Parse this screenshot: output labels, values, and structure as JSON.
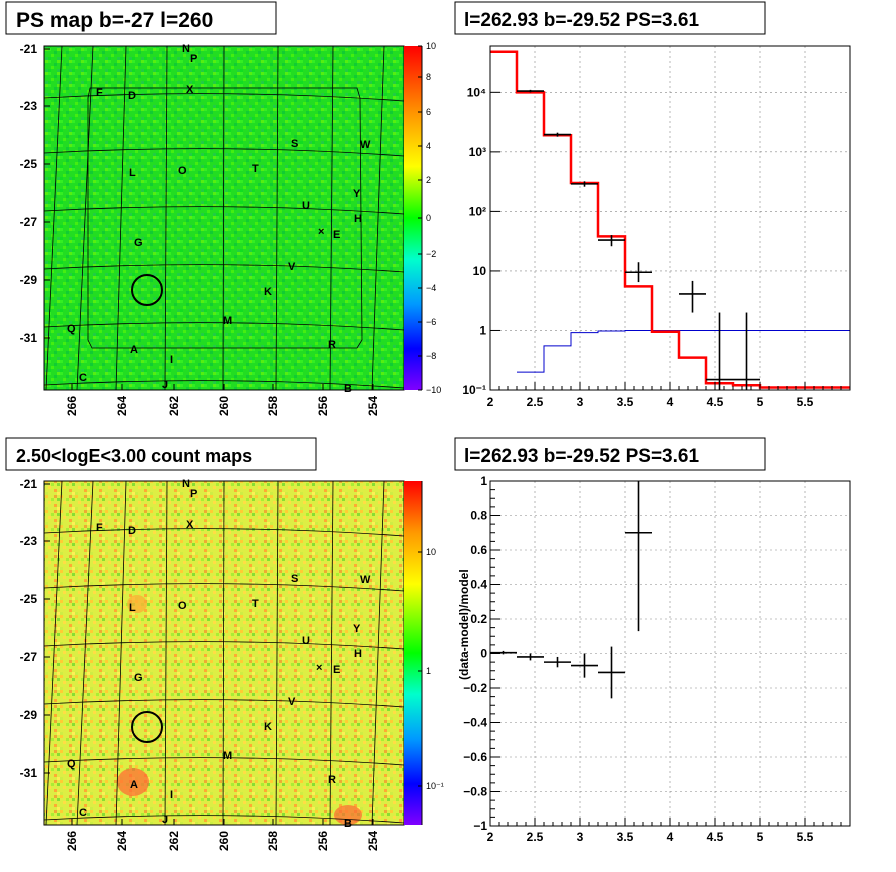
{
  "panels": {
    "tl_title": "PS map b=-27 l=260",
    "tr_title": "l=262.93 b=-29.52 PS=3.61",
    "bl_title": "2.50<logE<3.00 count maps",
    "br_title": "l=262.93 b=-29.52 PS=3.61"
  },
  "maps": {
    "y_ticks": [
      "-21",
      "-23",
      "-25",
      "-27",
      "-29",
      "-31"
    ],
    "x_ticks": [
      "266",
      "264",
      "262",
      "260",
      "258",
      "256",
      "254"
    ],
    "source_labels": [
      "N",
      "P",
      "F",
      "D",
      "X",
      "S",
      "W",
      "L",
      "O",
      "T",
      "Y",
      "U",
      "H",
      "E",
      "G",
      "V",
      "K",
      "M",
      "Q",
      "R",
      "A",
      "I",
      "C",
      "J",
      "B"
    ],
    "ps_colorbar_ticks": [
      "10",
      "8",
      "6",
      "4",
      "2",
      "0",
      "−2",
      "−4",
      "−6",
      "−8",
      "−10"
    ],
    "count_colorbar_ticks": [
      "10",
      "1",
      "10⁻¹"
    ]
  },
  "chart_data": [
    {
      "type": "line",
      "panel": "spectrum",
      "title": "l=262.93 b=-29.52 PS=3.61",
      "x_scale": "linear",
      "y_scale": "log",
      "xlim": [
        2,
        6
      ],
      "ylim": [
        0.1,
        60000
      ],
      "x_ticks": [
        "2",
        "2.5",
        "3",
        "3.5",
        "4",
        "4.5",
        "5",
        "5.5"
      ],
      "y_ticks": [
        "10⁴",
        "10³",
        "10²",
        "10",
        "1",
        "10⁻¹"
      ],
      "grid": true,
      "series": [
        {
          "role": "model",
          "color": "#ff0000",
          "edges": [
            2.0,
            2.3,
            2.6,
            2.9,
            3.2,
            3.5,
            3.8,
            4.1,
            4.4,
            4.7,
            5.0,
            6.0
          ],
          "values": [
            48000,
            10000,
            1900,
            300,
            38,
            5.5,
            0.95,
            0.35,
            0.13,
            0.12,
            0.11
          ]
        },
        {
          "role": "background",
          "color": "#0000cc",
          "edges": [
            2.3,
            2.6,
            2.9,
            3.2,
            3.5,
            3.8,
            4.1,
            4.4,
            4.7,
            5.0,
            6.0
          ],
          "values": [
            0.2,
            0.55,
            0.92,
            0.98,
            1.0,
            1.0,
            1.0,
            1.0,
            1.0,
            1.0
          ]
        },
        {
          "role": "data",
          "color": "#000000",
          "x": [
            2.45,
            2.75,
            3.05,
            3.35,
            3.65,
            4.25,
            4.55,
            4.85
          ],
          "y": [
            10500,
            1950,
            290,
            33,
            9.5,
            4.1,
            0.15,
            0.15
          ],
          "xerr": 0.15,
          "yerr_low": [
            10000,
            1800,
            260,
            26,
            6.5,
            2.0,
            0.1,
            0.1
          ],
          "yerr_high": [
            11000,
            2100,
            320,
            40,
            14,
            6.8,
            2.0,
            2.0
          ]
        }
      ]
    },
    {
      "type": "scatter",
      "panel": "residual",
      "title": "l=262.93 b=-29.52 PS=3.61",
      "ylabel": "(data-model)/model",
      "xlim": [
        2,
        6
      ],
      "ylim": [
        -1,
        1
      ],
      "x_ticks": [
        "2",
        "2.5",
        "3",
        "3.5",
        "4",
        "4.5",
        "5",
        "5.5"
      ],
      "y_ticks": [
        "1",
        "0.8",
        "0.6",
        "0.4",
        "0.2",
        "0",
        "−0.2",
        "−0.4",
        "−0.6",
        "−0.8",
        "−1"
      ],
      "grid": true,
      "series": [
        {
          "role": "data",
          "color": "#000000",
          "x": [
            2.15,
            2.45,
            2.75,
            3.05,
            3.35,
            3.65
          ],
          "y": [
            0.005,
            -0.02,
            -0.05,
            -0.07,
            -0.11,
            0.7
          ],
          "xerr": 0.15,
          "yerr": [
            0.01,
            0.02,
            0.03,
            0.07,
            0.15,
            0.57
          ]
        }
      ]
    }
  ]
}
